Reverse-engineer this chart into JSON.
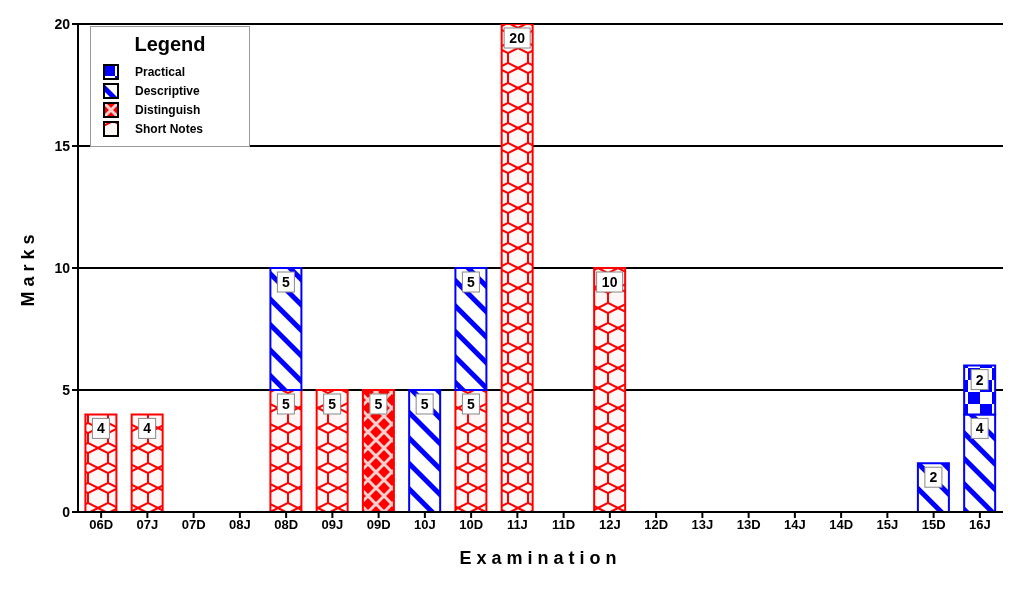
{
  "chart_data": {
    "type": "bar",
    "stacked": true,
    "xlabel": "Examination",
    "ylabel": "Marks",
    "legend_title": "Legend",
    "legend": "top left",
    "grid": "y",
    "data_labels": true,
    "categories": [
      "06D",
      "07J",
      "07D",
      "08J",
      "08D",
      "09J",
      "09D",
      "10J",
      "10D",
      "11J",
      "11D",
      "12J",
      "12D",
      "13J",
      "13D",
      "14J",
      "14D",
      "15J",
      "15D",
      "16J"
    ],
    "ylim": [
      0,
      20
    ],
    "yticks": [
      0,
      5,
      10,
      15,
      20
    ],
    "series": [
      {
        "name": "Short Notes",
        "color": "#ff0000",
        "values": [
          4,
          4,
          null,
          null,
          5,
          5,
          null,
          null,
          5,
          20,
          null,
          10,
          null,
          null,
          null,
          null,
          null,
          null,
          null,
          null
        ]
      },
      {
        "name": "Distinguish",
        "color": "#ff0000",
        "values": [
          null,
          null,
          null,
          null,
          null,
          null,
          5,
          null,
          null,
          null,
          null,
          null,
          null,
          null,
          null,
          null,
          null,
          null,
          null,
          null
        ]
      },
      {
        "name": "Descriptive",
        "color": "#0000ff",
        "values": [
          null,
          null,
          null,
          null,
          5,
          null,
          null,
          5,
          5,
          null,
          null,
          null,
          null,
          null,
          null,
          null,
          null,
          null,
          2,
          4
        ]
      },
      {
        "name": "Practical",
        "color": "#0000ff",
        "values": [
          null,
          null,
          null,
          null,
          null,
          null,
          null,
          null,
          null,
          null,
          null,
          null,
          null,
          null,
          null,
          null,
          null,
          null,
          null,
          2
        ]
      }
    ]
  }
}
